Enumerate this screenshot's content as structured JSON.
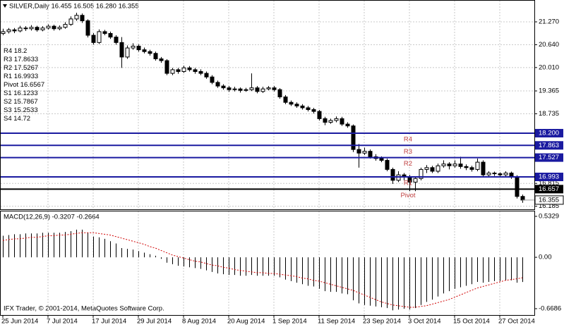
{
  "header": "SILVER,Daily  16.455 16.505 16.280 16.355",
  "copyright": "IFX Trader, © 2001-2014, MetaQuotes Software Corp.",
  "chart_data": [
    {
      "type": "candlestick",
      "last_label": "16.355",
      "ylim": [
        16.1,
        21.62
      ],
      "yticks": [
        {
          "value": 21.27,
          "label": "21.270"
        },
        {
          "value": 20.64,
          "label": "20.640"
        },
        {
          "value": 20.01,
          "label": "20.010"
        },
        19.365,
        18.735,
        16.815,
        16.185
      ],
      "grid": true,
      "levels": [
        {
          "name": "R4",
          "value": 18.2,
          "axis_label": "18.200",
          "color": "#1a1aa0"
        },
        {
          "name": "R3",
          "value": 17.8633,
          "axis_label": "17.863",
          "color": "#1a1aa0"
        },
        {
          "name": "R2",
          "value": 17.5267,
          "axis_label": "17.527",
          "color": "#1a1aa0"
        },
        {
          "name": "R1",
          "value": 16.9933,
          "axis_label": "16.993",
          "color": "#1a1aa0"
        },
        {
          "name": "Pivot",
          "value": 16.6567,
          "axis_label": "16.657",
          "color": "#000000"
        },
        {
          "name": "S1",
          "value": 16.1233
        },
        {
          "name": "S2",
          "value": 15.7867
        },
        {
          "name": "S3",
          "value": 15.2533
        },
        {
          "name": "S4",
          "value": 14.72
        }
      ],
      "categories": [
        "25 Jun 2014",
        null,
        null,
        null,
        null,
        null,
        null,
        null,
        "7 Jul 2014",
        null,
        null,
        null,
        null,
        null,
        null,
        null,
        "17 Jul 2014",
        null,
        null,
        null,
        null,
        null,
        null,
        null,
        "29 Jul 2014",
        null,
        null,
        null,
        null,
        null,
        null,
        null,
        "8 Aug 2014",
        null,
        null,
        null,
        null,
        null,
        null,
        null,
        "20 Aug 2014",
        null,
        null,
        null,
        null,
        null,
        null,
        null,
        "1 Sep 2014",
        null,
        null,
        null,
        null,
        null,
        null,
        null,
        "11 Sep 2014",
        null,
        null,
        null,
        null,
        null,
        null,
        null,
        "23 Sep 2014",
        null,
        null,
        null,
        null,
        null,
        null,
        null,
        "3 Oct 2014",
        null,
        null,
        null,
        null,
        null,
        null,
        null,
        "15 Oct 2014",
        null,
        null,
        null,
        null,
        null,
        null,
        null,
        "27 Oct 2014",
        null,
        null,
        null,
        null
      ],
      "ohlc": [
        [
          20.95,
          21.08,
          20.9,
          21.0
        ],
        [
          21.0,
          21.1,
          20.95,
          21.05
        ],
        [
          21.05,
          21.1,
          20.96,
          21.02
        ],
        [
          21.02,
          21.16,
          20.98,
          21.1
        ],
        [
          21.1,
          21.15,
          21.02,
          21.08
        ],
        [
          21.08,
          21.18,
          21.03,
          21.12
        ],
        [
          21.12,
          21.16,
          21.0,
          21.05
        ],
        [
          21.05,
          21.15,
          21.01,
          21.1
        ],
        [
          21.1,
          21.2,
          21.06,
          21.15
        ],
        [
          21.15,
          21.19,
          21.03,
          21.08
        ],
        [
          21.08,
          21.17,
          21.04,
          21.12
        ],
        [
          21.12,
          21.26,
          21.08,
          21.2
        ],
        [
          21.2,
          21.42,
          21.16,
          21.35
        ],
        [
          21.35,
          21.52,
          21.3,
          21.45
        ],
        [
          21.45,
          21.5,
          21.24,
          21.3
        ],
        [
          21.3,
          21.34,
          20.84,
          20.9
        ],
        [
          20.9,
          20.96,
          20.64,
          20.7
        ],
        [
          20.7,
          21.06,
          20.66,
          21.0
        ],
        [
          21.0,
          21.05,
          20.9,
          20.95
        ],
        [
          20.95,
          21.0,
          20.8,
          20.85
        ],
        [
          20.85,
          20.9,
          20.64,
          20.7
        ],
        [
          20.7,
          20.85,
          20.0,
          20.3
        ],
        [
          20.3,
          20.62,
          20.25,
          20.55
        ],
        [
          20.55,
          20.68,
          20.5,
          20.6
        ],
        [
          20.6,
          20.65,
          20.45,
          20.5
        ],
        [
          20.5,
          20.56,
          20.4,
          20.45
        ],
        [
          20.45,
          20.5,
          20.34,
          20.4
        ],
        [
          20.4,
          20.45,
          20.2,
          20.25
        ],
        [
          20.25,
          20.3,
          20.14,
          20.2
        ],
        [
          20.2,
          20.24,
          19.8,
          19.85
        ],
        [
          19.85,
          20.0,
          19.8,
          19.95
        ],
        [
          19.95,
          20.0,
          19.84,
          19.9
        ],
        [
          19.9,
          20.06,
          19.86,
          20.0
        ],
        [
          20.0,
          20.05,
          19.9,
          19.95
        ],
        [
          19.95,
          20.0,
          19.84,
          19.9
        ],
        [
          19.9,
          19.96,
          19.8,
          19.85
        ],
        [
          19.85,
          19.9,
          19.7,
          19.75
        ],
        [
          19.75,
          19.8,
          19.55,
          19.6
        ],
        [
          19.6,
          19.65,
          19.45,
          19.5
        ],
        [
          19.5,
          19.55,
          19.4,
          19.45
        ],
        [
          19.45,
          19.5,
          19.34,
          19.4
        ],
        [
          19.4,
          19.48,
          19.35,
          19.42
        ],
        [
          19.42,
          19.46,
          19.32,
          19.38
        ],
        [
          19.38,
          19.45,
          19.34,
          19.4
        ],
        [
          19.4,
          19.85,
          19.36,
          19.45
        ],
        [
          19.45,
          19.5,
          19.3,
          19.35
        ],
        [
          19.35,
          19.48,
          19.31,
          19.42
        ],
        [
          19.42,
          19.5,
          19.38,
          19.45
        ],
        [
          19.45,
          19.5,
          19.35,
          19.4
        ],
        [
          19.4,
          19.44,
          19.15,
          19.2
        ],
        [
          19.2,
          19.25,
          19.0,
          19.05
        ],
        [
          19.05,
          19.1,
          18.95,
          19.0
        ],
        [
          19.0,
          19.05,
          18.9,
          18.95
        ],
        [
          18.95,
          19.0,
          18.85,
          18.9
        ],
        [
          18.9,
          18.95,
          18.8,
          18.85
        ],
        [
          18.85,
          18.9,
          18.74,
          18.8
        ],
        [
          18.8,
          18.84,
          18.55,
          18.6
        ],
        [
          18.6,
          18.65,
          18.42,
          18.5
        ],
        [
          18.5,
          18.6,
          18.46,
          18.55
        ],
        [
          18.55,
          18.66,
          18.5,
          18.6
        ],
        [
          18.6,
          18.65,
          18.4,
          18.45
        ],
        [
          18.45,
          18.5,
          18.35,
          18.4
        ],
        [
          18.4,
          18.44,
          17.68,
          17.75
        ],
        [
          17.75,
          17.9,
          17.25,
          17.65
        ],
        [
          17.65,
          17.8,
          17.6,
          17.7
        ],
        [
          17.7,
          17.75,
          17.5,
          17.55
        ],
        [
          17.55,
          17.62,
          17.44,
          17.5
        ],
        [
          17.5,
          17.56,
          17.4,
          17.45
        ],
        [
          17.45,
          17.5,
          17.15,
          17.2
        ],
        [
          17.2,
          17.25,
          16.8,
          16.9
        ],
        [
          16.9,
          17.15,
          16.85,
          17.05
        ],
        [
          17.05,
          17.1,
          16.9,
          17.0
        ],
        [
          17.0,
          17.05,
          16.6,
          16.85
        ],
        [
          16.85,
          17.0,
          16.6,
          16.95
        ],
        [
          16.95,
          17.25,
          16.9,
          17.2
        ],
        [
          17.2,
          17.32,
          17.1,
          17.25
        ],
        [
          17.25,
          17.3,
          17.1,
          17.15
        ],
        [
          17.15,
          17.36,
          17.1,
          17.3
        ],
        [
          17.3,
          17.45,
          17.25,
          17.35
        ],
        [
          17.35,
          17.4,
          17.2,
          17.3
        ],
        [
          17.3,
          17.45,
          17.25,
          17.35
        ],
        [
          17.35,
          17.55,
          17.22,
          17.28
        ],
        [
          17.28,
          17.34,
          17.18,
          17.25
        ],
        [
          17.25,
          17.3,
          17.14,
          17.2
        ],
        [
          17.2,
          17.5,
          17.15,
          17.4
        ],
        [
          17.4,
          17.45,
          17.0,
          17.05
        ],
        [
          17.05,
          17.15,
          17.0,
          17.1
        ],
        [
          17.1,
          17.14,
          17.02,
          17.08
        ],
        [
          17.08,
          17.12,
          16.98,
          17.05
        ],
        [
          17.05,
          17.15,
          17.0,
          17.1
        ],
        [
          17.1,
          17.14,
          16.94,
          17.0
        ],
        [
          17.0,
          17.04,
          16.4,
          16.455
        ],
        [
          16.455,
          16.505,
          16.28,
          16.355
        ]
      ]
    },
    {
      "type": "macd",
      "label": "MACD(12,26,9) -0.3207 -0.2664",
      "ylim": [
        -0.751,
        0.606
      ],
      "yticks": [
        0.5329,
        {
          "value": 0,
          "label": "0.00"
        },
        -0.6686
      ],
      "series": [
        {
          "name": "MACD",
          "color": "#000000",
          "values": [
            0.28,
            0.29,
            0.3,
            0.3,
            0.31,
            0.31,
            0.31,
            0.32,
            0.32,
            0.32,
            0.32,
            0.33,
            0.34,
            0.36,
            0.36,
            0.32,
            0.27,
            0.26,
            0.24,
            0.21,
            0.18,
            0.12,
            0.11,
            0.1,
            0.08,
            0.06,
            0.04,
            0.02,
            -0.02,
            -0.07,
            -0.09,
            -0.11,
            -0.12,
            -0.13,
            -0.14,
            -0.15,
            -0.17,
            -0.19,
            -0.21,
            -0.22,
            -0.23,
            -0.23,
            -0.24,
            -0.24,
            -0.23,
            -0.24,
            -0.24,
            -0.24,
            -0.24,
            -0.26,
            -0.29,
            -0.31,
            -0.33,
            -0.35,
            -0.37,
            -0.38,
            -0.41,
            -0.44,
            -0.45,
            -0.45,
            -0.47,
            -0.48,
            -0.56,
            -0.6,
            -0.62,
            -0.63,
            -0.64,
            -0.65,
            -0.66,
            -0.69,
            -0.68,
            -0.67,
            -0.68,
            -0.66,
            -0.62,
            -0.58,
            -0.55,
            -0.51,
            -0.47,
            -0.44,
            -0.41,
            -0.39,
            -0.37,
            -0.35,
            -0.32,
            -0.33,
            -0.32,
            -0.31,
            -0.31,
            -0.3,
            -0.3,
            -0.33,
            -0.3207
          ]
        },
        {
          "name": "Signal",
          "color": "#d00000",
          "values": [
            0.22,
            0.23,
            0.24,
            0.24,
            0.25,
            0.26,
            0.26,
            0.27,
            0.28,
            0.28,
            0.29,
            0.29,
            0.3,
            0.31,
            0.32,
            0.32,
            0.32,
            0.31,
            0.3,
            0.29,
            0.27,
            0.25,
            0.23,
            0.21,
            0.19,
            0.17,
            0.14,
            0.12,
            0.09,
            0.06,
            0.03,
            0.01,
            -0.01,
            -0.03,
            -0.05,
            -0.06,
            -0.08,
            -0.1,
            -0.11,
            -0.13,
            -0.14,
            -0.16,
            -0.17,
            -0.18,
            -0.19,
            -0.2,
            -0.2,
            -0.21,
            -0.21,
            -0.22,
            -0.23,
            -0.24,
            -0.25,
            -0.27,
            -0.28,
            -0.3,
            -0.31,
            -0.33,
            -0.35,
            -0.37,
            -0.39,
            -0.41,
            -0.43,
            -0.46,
            -0.49,
            -0.52,
            -0.55,
            -0.58,
            -0.6,
            -0.62,
            -0.63,
            -0.64,
            -0.65,
            -0.65,
            -0.64,
            -0.63,
            -0.61,
            -0.59,
            -0.57,
            -0.55,
            -0.52,
            -0.49,
            -0.46,
            -0.43,
            -0.4,
            -0.38,
            -0.36,
            -0.34,
            -0.32,
            -0.3,
            -0.29,
            -0.28,
            -0.2664
          ]
        }
      ]
    }
  ]
}
